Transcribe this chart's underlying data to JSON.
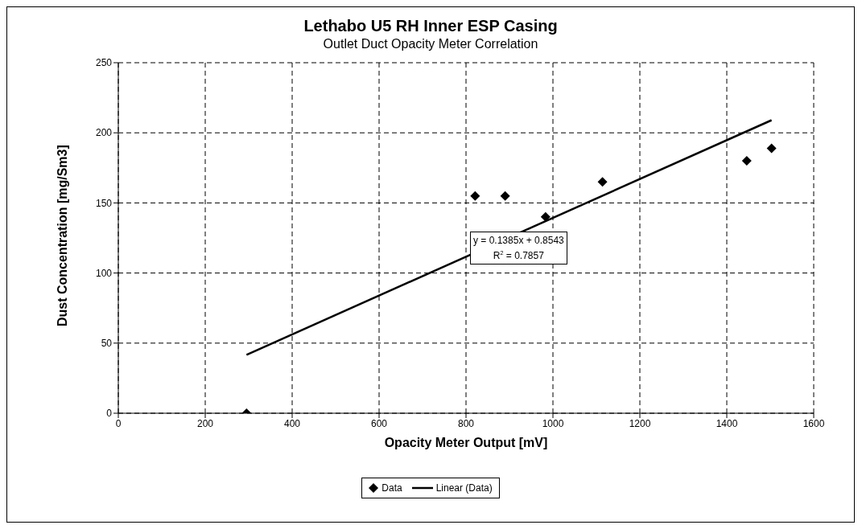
{
  "chart_data": {
    "type": "scatter",
    "title": "Lethabo U5 RH Inner ESP Casing",
    "subtitle": "Outlet Duct Opacity Meter Correlation",
    "xlabel": "Opacity Meter Output [mV]",
    "ylabel": "Dust Concentration [mg/Sm3]",
    "x": [
      295,
      821,
      890,
      983,
      1114,
      1446,
      1503
    ],
    "series": [
      {
        "name": "Data",
        "color": "#000000",
        "marker": "diamond",
        "values": [
          0,
          155,
          155,
          140,
          165,
          180,
          189
        ]
      },
      {
        "name": "Linear (Data)",
        "color": "#000000",
        "type": "line",
        "x": [
          295,
          1503
        ],
        "values": [
          41.7,
          209.0
        ]
      }
    ],
    "annotations": [
      "y = 0.1385x + 0.8543",
      "R$^{2}$ = 0.7857"
    ],
    "xlim": [
      0,
      1600
    ],
    "xticks": [
      0,
      200,
      400,
      600,
      800,
      1000,
      1200,
      1400,
      1600
    ],
    "ylim": [
      0,
      250
    ],
    "yticks": [
      0,
      50,
      100,
      150,
      200,
      250
    ],
    "grid": true,
    "legend": "bottom",
    "line_style": "solid"
  }
}
